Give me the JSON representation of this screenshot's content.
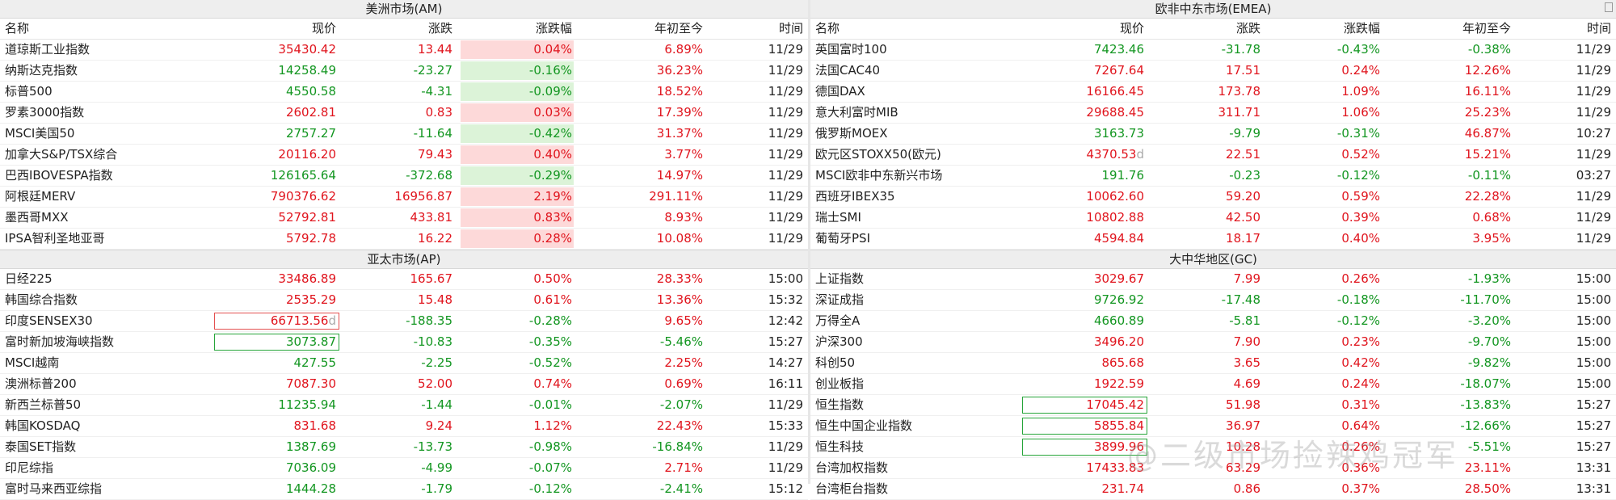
{
  "headers": {
    "name": "名称",
    "price": "现价",
    "chg": "涨跌",
    "pct": "涨跌幅",
    "ytd": "年初至今",
    "time": "时间"
  },
  "watermark": "@二级市场捡辣鸡冠军",
  "sections": {
    "am": {
      "title": "美洲市场(AM)",
      "rows": [
        {
          "name": "道琼斯工业指数",
          "price": "35430.42",
          "chg": "13.44",
          "pct": "0.04%",
          "ytd": "6.89%",
          "time": "11/29",
          "dir": "up",
          "ytd_dir": "up",
          "bg": "pos"
        },
        {
          "name": "纳斯达克指数",
          "price": "14258.49",
          "chg": "-23.27",
          "pct": "-0.16%",
          "ytd": "36.23%",
          "time": "11/29",
          "dir": "down",
          "ytd_dir": "up",
          "bg": "neg"
        },
        {
          "name": "标普500",
          "price": "4550.58",
          "chg": "-4.31",
          "pct": "-0.09%",
          "ytd": "18.52%",
          "time": "11/29",
          "dir": "down",
          "ytd_dir": "up",
          "bg": "neg"
        },
        {
          "name": "罗素3000指数",
          "price": "2602.81",
          "chg": "0.83",
          "pct": "0.03%",
          "ytd": "17.39%",
          "time": "11/29",
          "dir": "up",
          "ytd_dir": "up",
          "bg": "pos"
        },
        {
          "name": "MSCI美国50",
          "price": "2757.27",
          "chg": "-11.64",
          "pct": "-0.42%",
          "ytd": "31.37%",
          "time": "11/29",
          "dir": "down",
          "ytd_dir": "up",
          "bg": "neg"
        },
        {
          "name": "加拿大S&P/TSX综合",
          "price": "20116.20",
          "chg": "79.43",
          "pct": "0.40%",
          "ytd": "3.77%",
          "time": "11/29",
          "dir": "up",
          "ytd_dir": "up",
          "bg": "pos"
        },
        {
          "name": "巴西IBOVESPA指数",
          "price": "126165.64",
          "chg": "-372.68",
          "pct": "-0.29%",
          "ytd": "14.97%",
          "time": "11/29",
          "dir": "down",
          "ytd_dir": "up",
          "bg": "neg"
        },
        {
          "name": "阿根廷MERV",
          "price": "790376.62",
          "chg": "16956.87",
          "pct": "2.19%",
          "ytd": "291.11%",
          "time": "11/29",
          "dir": "up",
          "ytd_dir": "up",
          "bg": "pos"
        },
        {
          "name": "墨西哥MXX",
          "price": "52792.81",
          "chg": "433.81",
          "pct": "0.83%",
          "ytd": "8.93%",
          "time": "11/29",
          "dir": "up",
          "ytd_dir": "up",
          "bg": "pos"
        },
        {
          "name": "IPSA智利圣地亚哥",
          "price": "5792.78",
          "chg": "16.22",
          "pct": "0.28%",
          "ytd": "10.08%",
          "time": "11/29",
          "dir": "up",
          "ytd_dir": "up",
          "bg": "pos"
        }
      ]
    },
    "emea": {
      "title": "欧非中东市场(EMEA)",
      "rows": [
        {
          "name": "英国富时100",
          "price": "7423.46",
          "chg": "-31.78",
          "pct": "-0.43%",
          "ytd": "-0.38%",
          "time": "11/29",
          "dir": "down",
          "ytd_dir": "down"
        },
        {
          "name": "法国CAC40",
          "price": "7267.64",
          "chg": "17.51",
          "pct": "0.24%",
          "ytd": "12.26%",
          "time": "11/29",
          "dir": "up",
          "ytd_dir": "up"
        },
        {
          "name": "德国DAX",
          "price": "16166.45",
          "chg": "173.78",
          "pct": "1.09%",
          "ytd": "16.11%",
          "time": "11/29",
          "dir": "up",
          "ytd_dir": "up"
        },
        {
          "name": "意大利富时MIB",
          "price": "29688.45",
          "chg": "311.71",
          "pct": "1.06%",
          "ytd": "25.23%",
          "time": "11/29",
          "dir": "up",
          "ytd_dir": "up"
        },
        {
          "name": "俄罗斯MOEX",
          "price": "3163.73",
          "chg": "-9.79",
          "pct": "-0.31%",
          "ytd": "46.87%",
          "time": "10:27",
          "dir": "down",
          "ytd_dir": "up"
        },
        {
          "name": "欧元区STOXX50(欧元)",
          "price": "4370.53",
          "suffix": "d",
          "chg": "22.51",
          "pct": "0.52%",
          "ytd": "15.21%",
          "time": "11/29",
          "dir": "up",
          "ytd_dir": "up"
        },
        {
          "name": "MSCI欧非中东新兴市场",
          "price": "191.76",
          "chg": "-0.23",
          "pct": "-0.12%",
          "ytd": "-0.11%",
          "time": "03:27",
          "dir": "down",
          "ytd_dir": "down"
        },
        {
          "name": "西班牙IBEX35",
          "price": "10062.60",
          "chg": "59.20",
          "pct": "0.59%",
          "ytd": "22.28%",
          "time": "11/29",
          "dir": "up",
          "ytd_dir": "up"
        },
        {
          "name": "瑞士SMI",
          "price": "10802.88",
          "chg": "42.50",
          "pct": "0.39%",
          "ytd": "0.68%",
          "time": "11/29",
          "dir": "up",
          "ytd_dir": "up"
        },
        {
          "name": "葡萄牙PSI",
          "price": "4594.84",
          "chg": "18.17",
          "pct": "0.40%",
          "ytd": "3.95%",
          "time": "11/29",
          "dir": "up",
          "ytd_dir": "up"
        }
      ]
    },
    "ap": {
      "title": "亚太市场(AP)",
      "rows": [
        {
          "name": "日经225",
          "price": "33486.89",
          "chg": "165.67",
          "pct": "0.50%",
          "ytd": "28.33%",
          "time": "15:00",
          "dir": "up",
          "ytd_dir": "up"
        },
        {
          "name": "韩国综合指数",
          "price": "2535.29",
          "chg": "15.48",
          "pct": "0.61%",
          "ytd": "13.36%",
          "time": "15:32",
          "dir": "up",
          "ytd_dir": "up"
        },
        {
          "name": "印度SENSEX30",
          "price": "66713.56",
          "suffix": "d",
          "chg": "-188.35",
          "pct": "-0.28%",
          "ytd": "9.65%",
          "time": "12:42",
          "dir": "down",
          "ytd_dir": "up",
          "price_dir": "up",
          "box": "red"
        },
        {
          "name": "富时新加坡海峡指数",
          "price": "3073.87",
          "chg": "-10.83",
          "pct": "-0.35%",
          "ytd": "-5.46%",
          "time": "15:27",
          "dir": "down",
          "ytd_dir": "down",
          "box": "green"
        },
        {
          "name": "MSCI越南",
          "price": "427.55",
          "chg": "-2.25",
          "pct": "-0.52%",
          "ytd": "2.25%",
          "time": "14:27",
          "dir": "down",
          "ytd_dir": "up"
        },
        {
          "name": "澳洲标普200",
          "price": "7087.30",
          "chg": "52.00",
          "pct": "0.74%",
          "ytd": "0.69%",
          "time": "16:11",
          "dir": "up",
          "ytd_dir": "up"
        },
        {
          "name": "新西兰标普50",
          "price": "11235.94",
          "chg": "-1.44",
          "pct": "-0.01%",
          "ytd": "-2.07%",
          "time": "11/29",
          "dir": "down",
          "ytd_dir": "down"
        },
        {
          "name": "韩国KOSDAQ",
          "price": "831.68",
          "chg": "9.24",
          "pct": "1.12%",
          "ytd": "22.43%",
          "time": "15:33",
          "dir": "up",
          "ytd_dir": "up"
        },
        {
          "name": "泰国SET指数",
          "price": "1387.69",
          "chg": "-13.73",
          "pct": "-0.98%",
          "ytd": "-16.84%",
          "time": "11/29",
          "dir": "down",
          "ytd_dir": "down"
        },
        {
          "name": "印尼综指",
          "price": "7036.09",
          "chg": "-4.99",
          "pct": "-0.07%",
          "ytd": "2.71%",
          "time": "11/29",
          "dir": "down",
          "ytd_dir": "up"
        },
        {
          "name": "富时马来西亚综指",
          "price": "1444.28",
          "chg": "-1.79",
          "pct": "-0.12%",
          "ytd": "-2.41%",
          "time": "15:12",
          "dir": "down",
          "ytd_dir": "down"
        }
      ]
    },
    "gc": {
      "title": "大中华地区(GC)",
      "rows": [
        {
          "name": "上证指数",
          "price": "3029.67",
          "chg": "7.99",
          "pct": "0.26%",
          "ytd": "-1.93%",
          "time": "15:00",
          "dir": "up",
          "ytd_dir": "down"
        },
        {
          "name": "深证成指",
          "price": "9726.92",
          "chg": "-17.48",
          "pct": "-0.18%",
          "ytd": "-11.70%",
          "time": "15:00",
          "dir": "down",
          "ytd_dir": "down"
        },
        {
          "name": "万得全A",
          "price": "4660.89",
          "chg": "-5.81",
          "pct": "-0.12%",
          "ytd": "-3.20%",
          "time": "15:00",
          "dir": "down",
          "ytd_dir": "down"
        },
        {
          "name": "沪深300",
          "price": "3496.20",
          "chg": "7.90",
          "pct": "0.23%",
          "ytd": "-9.70%",
          "time": "15:00",
          "dir": "up",
          "ytd_dir": "down"
        },
        {
          "name": "科创50",
          "price": "865.68",
          "chg": "3.65",
          "pct": "0.42%",
          "ytd": "-9.82%",
          "time": "15:00",
          "dir": "up",
          "ytd_dir": "down"
        },
        {
          "name": "创业板指",
          "price": "1922.59",
          "chg": "4.69",
          "pct": "0.24%",
          "ytd": "-18.07%",
          "time": "15:00",
          "dir": "up",
          "ytd_dir": "down"
        },
        {
          "name": "恒生指数",
          "price": "17045.42",
          "chg": "51.98",
          "pct": "0.31%",
          "ytd": "-13.83%",
          "time": "15:27",
          "dir": "up",
          "ytd_dir": "down",
          "box": "green"
        },
        {
          "name": "恒生中国企业指数",
          "price": "5855.84",
          "chg": "36.97",
          "pct": "0.64%",
          "ytd": "-12.66%",
          "time": "15:27",
          "dir": "up",
          "ytd_dir": "down",
          "box": "green"
        },
        {
          "name": "恒生科技",
          "price": "3899.96",
          "chg": "10.28",
          "pct": "0.26%",
          "ytd": "-5.51%",
          "time": "15:27",
          "dir": "up",
          "ytd_dir": "down",
          "box": "green"
        },
        {
          "name": "台湾加权指数",
          "price": "17433.83",
          "chg": "63.29",
          "pct": "0.36%",
          "ytd": "23.11%",
          "time": "13:31",
          "dir": "up",
          "ytd_dir": "up"
        },
        {
          "name": "台湾柜台指数",
          "price": "231.74",
          "chg": "0.86",
          "pct": "0.37%",
          "ytd": "28.50%",
          "time": "13:31",
          "dir": "up",
          "ytd_dir": "up"
        }
      ]
    }
  }
}
